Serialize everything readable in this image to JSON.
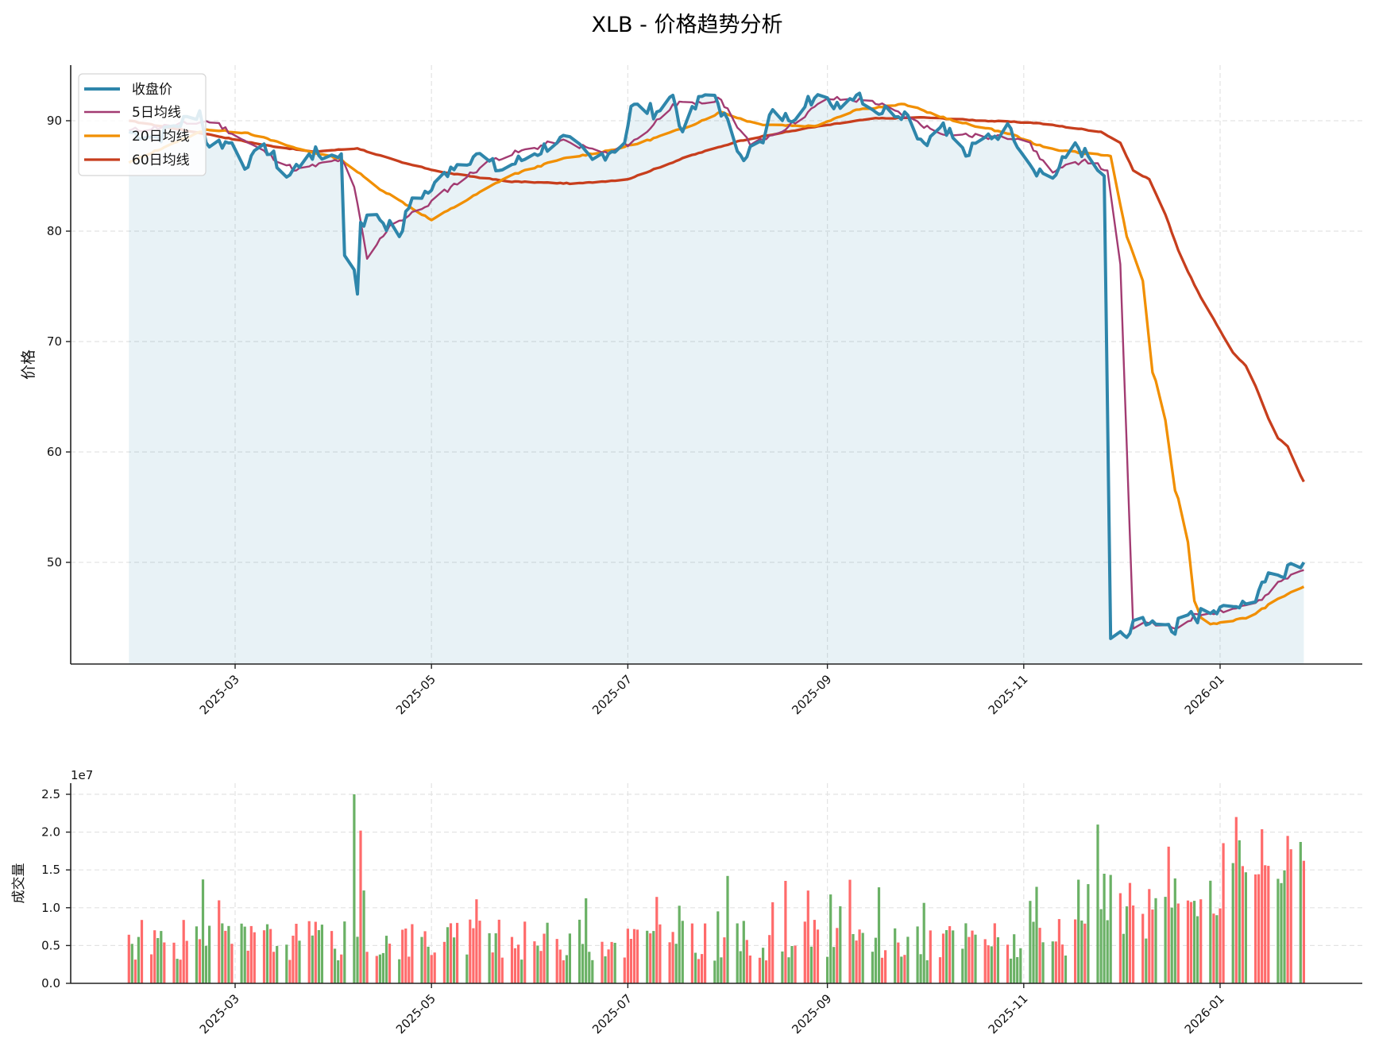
{
  "title": "XLB - 价格趋势分析",
  "price_panel": {
    "ylabel": "价格",
    "yticks": [
      "50",
      "60",
      "70",
      "80",
      "90"
    ],
    "xticks": [
      "2025-03",
      "2025-05",
      "2025-07",
      "2025-09",
      "2025-11",
      "2026-01"
    ],
    "legend": [
      {
        "label": "收盘价",
        "color": "#2E86AB"
      },
      {
        "label": "5日均线",
        "color": "#A23B72"
      },
      {
        "label": "20日均线",
        "color": "#F18F01"
      },
      {
        "label": "60日均线",
        "color": "#C73E1D"
      }
    ]
  },
  "volume_panel": {
    "ylabel": "成交量",
    "offset_label": "1e7",
    "yticks": [
      "0.0",
      "0.5",
      "1.0",
      "1.5",
      "2.0",
      "2.5"
    ],
    "xticks": [
      "2025-03",
      "2025-05",
      "2025-07",
      "2025-09",
      "2025-11",
      "2026-01"
    ],
    "up_color": "#FF6B6B",
    "down_color": "#6AB165"
  },
  "chart_data": [
    {
      "type": "line",
      "title": "XLB - 价格趋势分析",
      "xlabel": "",
      "ylabel": "价格",
      "x_range": [
        "2025-01-27",
        "2026-01-27"
      ],
      "ylim": [
        40.8,
        95.2
      ],
      "grid": true,
      "legend_position": "upper left",
      "series": [
        {
          "name": "收盘价",
          "color": "#2E86AB",
          "points": [
            [
              "2025-01-27",
              89.0
            ],
            [
              "2025-02-05",
              88.5
            ],
            [
              "2025-02-18",
              90.9
            ],
            [
              "2025-02-20",
              88.0
            ],
            [
              "2025-02-28",
              88.0
            ],
            [
              "2025-03-05",
              85.8
            ],
            [
              "2025-03-10",
              87.9
            ],
            [
              "2025-03-17",
              84.9
            ],
            [
              "2025-03-24",
              87.0
            ],
            [
              "2025-04-01",
              86.8
            ],
            [
              "2025-04-03",
              87.0
            ],
            [
              "2025-04-04",
              77.8
            ],
            [
              "2025-04-07",
              76.5
            ],
            [
              "2025-04-08",
              74.3
            ],
            [
              "2025-04-09",
              80.8
            ],
            [
              "2025-04-14",
              81.5
            ],
            [
              "2025-04-21",
              79.5
            ],
            [
              "2025-04-25",
              83.0
            ],
            [
              "2025-05-01",
              83.7
            ],
            [
              "2025-05-07",
              85.8
            ],
            [
              "2025-05-15",
              87.0
            ],
            [
              "2025-05-22",
              85.5
            ],
            [
              "2025-06-02",
              87.0
            ],
            [
              "2025-06-10",
              88.5
            ],
            [
              "2025-06-20",
              86.5
            ],
            [
              "2025-06-30",
              88.0
            ],
            [
              "2025-07-02",
              91.3
            ],
            [
              "2025-07-10",
              90.8
            ],
            [
              "2025-07-15",
              92.3
            ],
            [
              "2025-07-18",
              89.0
            ],
            [
              "2025-07-24",
              92.2
            ],
            [
              "2025-07-28",
              92.3
            ],
            [
              "2025-08-05",
              86.9
            ],
            [
              "2025-08-12",
              88.0
            ],
            [
              "2025-08-15",
              91.0
            ],
            [
              "2025-08-20",
              90.0
            ],
            [
              "2025-08-26",
              92.2
            ],
            [
              "2025-09-02",
              91.5
            ],
            [
              "2025-09-08",
              92.0
            ],
            [
              "2025-09-11",
              92.5
            ],
            [
              "2025-09-15",
              91.0
            ],
            [
              "2025-09-25",
              90.8
            ],
            [
              "2025-10-01",
              88.0
            ],
            [
              "2025-10-07",
              89.8
            ],
            [
              "2025-10-14",
              86.8
            ],
            [
              "2025-10-20",
              88.5
            ],
            [
              "2025-10-28",
              89.3
            ],
            [
              "2025-11-03",
              86.0
            ],
            [
              "2025-11-10",
              84.8
            ],
            [
              "2025-11-17",
              88.0
            ],
            [
              "2025-11-24",
              85.5
            ],
            [
              "2025-11-26",
              85.0
            ],
            [
              "2025-11-28",
              43.1
            ],
            [
              "2025-12-03",
              43.2
            ],
            [
              "2025-12-06",
              44.5
            ],
            [
              "2025-12-12",
              44.4
            ],
            [
              "2025-12-18",
              43.5
            ],
            [
              "2025-12-20",
              45.0
            ],
            [
              "2025-12-28",
              45.2
            ],
            [
              "2026-01-05",
              46.0
            ],
            [
              "2026-01-10",
              45.9
            ],
            [
              "2026-01-14",
              48.2
            ],
            [
              "2026-01-20",
              48.7
            ],
            [
              "2026-01-23",
              49.9
            ],
            [
              "2026-01-27",
              50.0
            ]
          ]
        },
        {
          "name": "5日均线",
          "color": "#A23B72",
          "points": [
            [
              "2025-01-27",
              89.1
            ],
            [
              "2025-02-22",
              90.0
            ],
            [
              "2025-03-05",
              88.0
            ],
            [
              "2025-03-20",
              85.5
            ],
            [
              "2025-04-03",
              86.5
            ],
            [
              "2025-04-07",
              84.0
            ],
            [
              "2025-04-11",
              77.5
            ],
            [
              "2025-04-18",
              80.5
            ],
            [
              "2025-04-28",
              82.0
            ],
            [
              "2025-05-07",
              84.0
            ],
            [
              "2025-05-20",
              86.5
            ],
            [
              "2025-06-10",
              88.2
            ],
            [
              "2025-06-25",
              87.0
            ],
            [
              "2025-07-05",
              88.5
            ],
            [
              "2025-07-15",
              91.5
            ],
            [
              "2025-07-22",
              91.5
            ],
            [
              "2025-07-30",
              91.9
            ],
            [
              "2025-08-08",
              87.8
            ],
            [
              "2025-08-20",
              89.5
            ],
            [
              "2025-09-01",
              92.0
            ],
            [
              "2025-09-15",
              91.8
            ],
            [
              "2025-10-05",
              89.0
            ],
            [
              "2025-10-20",
              88.5
            ],
            [
              "2025-11-01",
              88.5
            ],
            [
              "2025-11-10",
              85.3
            ],
            [
              "2025-11-20",
              86.5
            ],
            [
              "2025-11-27",
              85.5
            ],
            [
              "2025-12-01",
              77.0
            ],
            [
              "2025-12-05",
              44.0
            ],
            [
              "2025-12-10",
              44.5
            ],
            [
              "2025-12-18",
              44.0
            ],
            [
              "2025-12-25",
              45.3
            ],
            [
              "2026-01-05",
              45.8
            ],
            [
              "2026-01-14",
              46.6
            ],
            [
              "2026-01-20",
              48.3
            ],
            [
              "2026-01-27",
              49.3
            ]
          ]
        },
        {
          "name": "20日均线",
          "color": "#F18F01",
          "points": [
            [
              "2025-01-27",
              86.2
            ],
            [
              "2025-02-10",
              88.0
            ],
            [
              "2025-02-20",
              89.2
            ],
            [
              "2025-03-05",
              88.9
            ],
            [
              "2025-03-20",
              87.5
            ],
            [
              "2025-04-03",
              86.5
            ],
            [
              "2025-04-14",
              84.0
            ],
            [
              "2025-04-21",
              82.8
            ],
            [
              "2025-05-01",
              81.0
            ],
            [
              "2025-05-10",
              82.5
            ],
            [
              "2025-05-25",
              85.0
            ],
            [
              "2025-06-10",
              86.5
            ],
            [
              "2025-06-25",
              87.3
            ],
            [
              "2025-07-05",
              88.0
            ],
            [
              "2025-07-20",
              89.5
            ],
            [
              "2025-07-30",
              90.8
            ],
            [
              "2025-08-10",
              89.7
            ],
            [
              "2025-08-28",
              89.5
            ],
            [
              "2025-09-10",
              91.0
            ],
            [
              "2025-09-25",
              91.5
            ],
            [
              "2025-10-10",
              90.0
            ],
            [
              "2025-10-28",
              88.8
            ],
            [
              "2025-11-08",
              87.5
            ],
            [
              "2025-11-22",
              87.0
            ],
            [
              "2025-11-28",
              86.8
            ],
            [
              "2025-12-03",
              79.5
            ],
            [
              "2025-12-08",
              75.5
            ],
            [
              "2025-12-11",
              67.2
            ],
            [
              "2025-12-14",
              65.0
            ],
            [
              "2025-12-18",
              56.5
            ],
            [
              "2025-12-21",
              54.5
            ],
            [
              "2025-12-24",
              46.5
            ],
            [
              "2025-12-27",
              44.3
            ],
            [
              "2026-01-10",
              45.0
            ],
            [
              "2026-01-18",
              46.5
            ],
            [
              "2026-01-23",
              47.3
            ],
            [
              "2026-01-27",
              47.8
            ]
          ]
        },
        {
          "name": "60日均线",
          "color": "#C73E1D",
          "points": [
            [
              "2025-01-27",
              90.0
            ],
            [
              "2025-02-20",
              88.8
            ],
            [
              "2025-03-10",
              87.8
            ],
            [
              "2025-03-25",
              87.2
            ],
            [
              "2025-04-08",
              87.5
            ],
            [
              "2025-04-22",
              86.2
            ],
            [
              "2025-05-05",
              85.3
            ],
            [
              "2025-05-25",
              84.5
            ],
            [
              "2025-06-15",
              84.3
            ],
            [
              "2025-07-01",
              84.7
            ],
            [
              "2025-07-20",
              86.8
            ],
            [
              "2025-08-05",
              88.2
            ],
            [
              "2025-08-25",
              89.3
            ],
            [
              "2025-09-15",
              90.2
            ],
            [
              "2025-10-01",
              90.3
            ],
            [
              "2025-10-20",
              90.0
            ],
            [
              "2025-11-05",
              89.8
            ],
            [
              "2025-11-25",
              89.0
            ],
            [
              "2025-12-01",
              88.0
            ],
            [
              "2025-12-05",
              85.5
            ],
            [
              "2025-12-10",
              84.7
            ],
            [
              "2025-12-15",
              81.5
            ],
            [
              "2025-12-20",
              77.5
            ],
            [
              "2025-12-26",
              74.0
            ],
            [
              "2025-12-31",
              71.5
            ],
            [
              "2026-01-05",
              69.0
            ],
            [
              "2026-01-10",
              67.5
            ],
            [
              "2026-01-14",
              64.5
            ],
            [
              "2026-01-18",
              61.5
            ],
            [
              "2026-01-22",
              60.5
            ],
            [
              "2026-01-25",
              58.5
            ],
            [
              "2026-01-27",
              57.3
            ]
          ]
        }
      ]
    },
    {
      "type": "bar",
      "title": "",
      "xlabel": "",
      "ylabel": "成交量",
      "y_scale_label": "1e7",
      "ylim": [
        0,
        2.65
      ],
      "grid": true,
      "note": "values in units of 1e7; red = up day, green = down day",
      "peaks": [
        {
          "date": "2025-04-07",
          "value": 2.5,
          "color": "green"
        },
        {
          "date": "2025-04-09",
          "value": 2.02,
          "color": "red"
        },
        {
          "date": "2025-11-24",
          "value": 2.1,
          "color": "green"
        },
        {
          "date": "2026-01-06",
          "value": 2.2,
          "color": "red"
        },
        {
          "date": "2026-01-22",
          "value": 1.95,
          "color": "red"
        },
        {
          "date": "2025-08-01",
          "value": 1.42,
          "color": "green"
        }
      ],
      "typical_range": [
        0.3,
        1.0
      ]
    }
  ]
}
